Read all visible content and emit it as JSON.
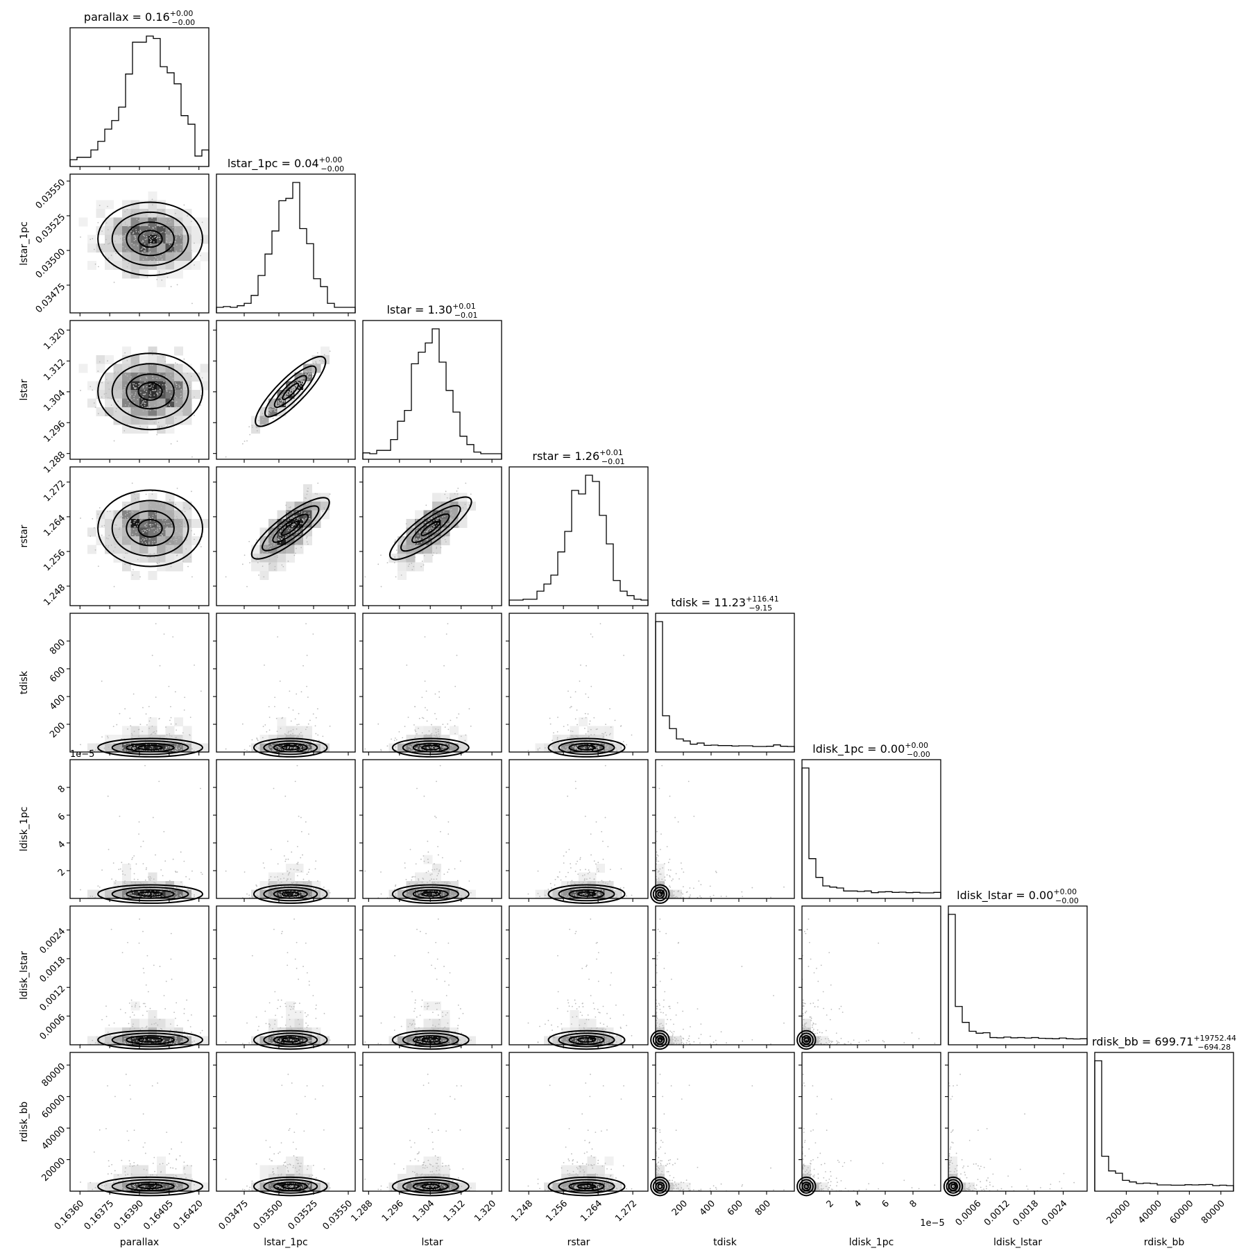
{
  "chart_data": {
    "type": "corner",
    "parameters": [
      {
        "name": "parallax",
        "title_value": "0.16",
        "plus": "+0.00",
        "minus": "−0.00",
        "range": [
          0.16355,
          0.16425
        ],
        "median": 0.16395,
        "sigma": 0.00012,
        "ticks": [
          0.1636,
          0.16375,
          0.1639,
          0.16405,
          0.1642
        ],
        "tick_labels": [
          "0.16360",
          "0.16375",
          "0.16390",
          "0.16405",
          "0.16420"
        ],
        "skew": "normal"
      },
      {
        "name": "lstar_1pc",
        "title_value": "0.04",
        "plus": "+0.00",
        "minus": "−0.00",
        "range": [
          0.03455,
          0.03555
        ],
        "median": 0.03508,
        "sigma": 0.00012,
        "ticks": [
          0.03475,
          0.035,
          0.03525,
          0.0355
        ],
        "tick_labels": [
          "0.03475",
          "0.03500",
          "0.03525",
          "0.03550"
        ],
        "skew": "normal"
      },
      {
        "name": "lstar",
        "title_value": "1.30",
        "plus": "+0.01",
        "minus": "−0.01",
        "range": [
          1.2865,
          1.3225
        ],
        "median": 1.304,
        "sigma": 0.0045,
        "ticks": [
          1.288,
          1.296,
          1.304,
          1.312,
          1.32
        ],
        "tick_labels": [
          "1.288",
          "1.296",
          "1.304",
          "1.312",
          "1.320"
        ],
        "skew": "normal"
      },
      {
        "name": "rstar",
        "title_value": "1.26",
        "plus": "+0.01",
        "minus": "−0.01",
        "range": [
          1.2435,
          1.2755
        ],
        "median": 1.261,
        "sigma": 0.004,
        "ticks": [
          1.248,
          1.256,
          1.264,
          1.272
        ],
        "tick_labels": [
          "1.248",
          "1.256",
          "1.264",
          "1.272"
        ],
        "skew": "normal"
      },
      {
        "name": "tdisk",
        "title_value": "11.23",
        "plus": "+116.41",
        "minus": "−9.15",
        "range": [
          0,
          1000
        ],
        "median": 11.23,
        "sigma": 60,
        "ticks": [
          200,
          400,
          600,
          800
        ],
        "tick_labels": [
          "200",
          "400",
          "600",
          "800"
        ],
        "skew": "right"
      },
      {
        "name": "ldisk_1pc",
        "title_value": "0.00",
        "plus": "+0.00",
        "minus": "−0.00",
        "range": [
          0,
          0.0001
        ],
        "median": 1e-06,
        "sigma": 2e-06,
        "ticks": [
          2e-05,
          4e-05,
          6e-05,
          8e-05
        ],
        "tick_labels": [
          "2",
          "4",
          "6",
          "8"
        ],
        "offset_label": "1e−5",
        "skew": "right"
      },
      {
        "name": "ldisk_lstar",
        "title_value": "0.00",
        "plus": "+0.00",
        "minus": "−0.00",
        "range": [
          0,
          0.0029
        ],
        "median": 3e-05,
        "sigma": 5e-05,
        "ticks": [
          0.0006,
          0.0012,
          0.0018,
          0.0024
        ],
        "tick_labels": [
          "0.0006",
          "0.0012",
          "0.0018",
          "0.0024"
        ],
        "skew": "right"
      },
      {
        "name": "rdisk_bb",
        "title_value": "699.71",
        "plus": "+19752.44",
        "minus": "−694.28",
        "range": [
          0,
          88000
        ],
        "median": 699.71,
        "sigma": 5000,
        "ticks": [
          20000,
          40000,
          60000,
          80000
        ],
        "tick_labels": [
          "20000",
          "40000",
          "60000",
          "80000"
        ],
        "skew": "right"
      }
    ],
    "grid": false
  }
}
